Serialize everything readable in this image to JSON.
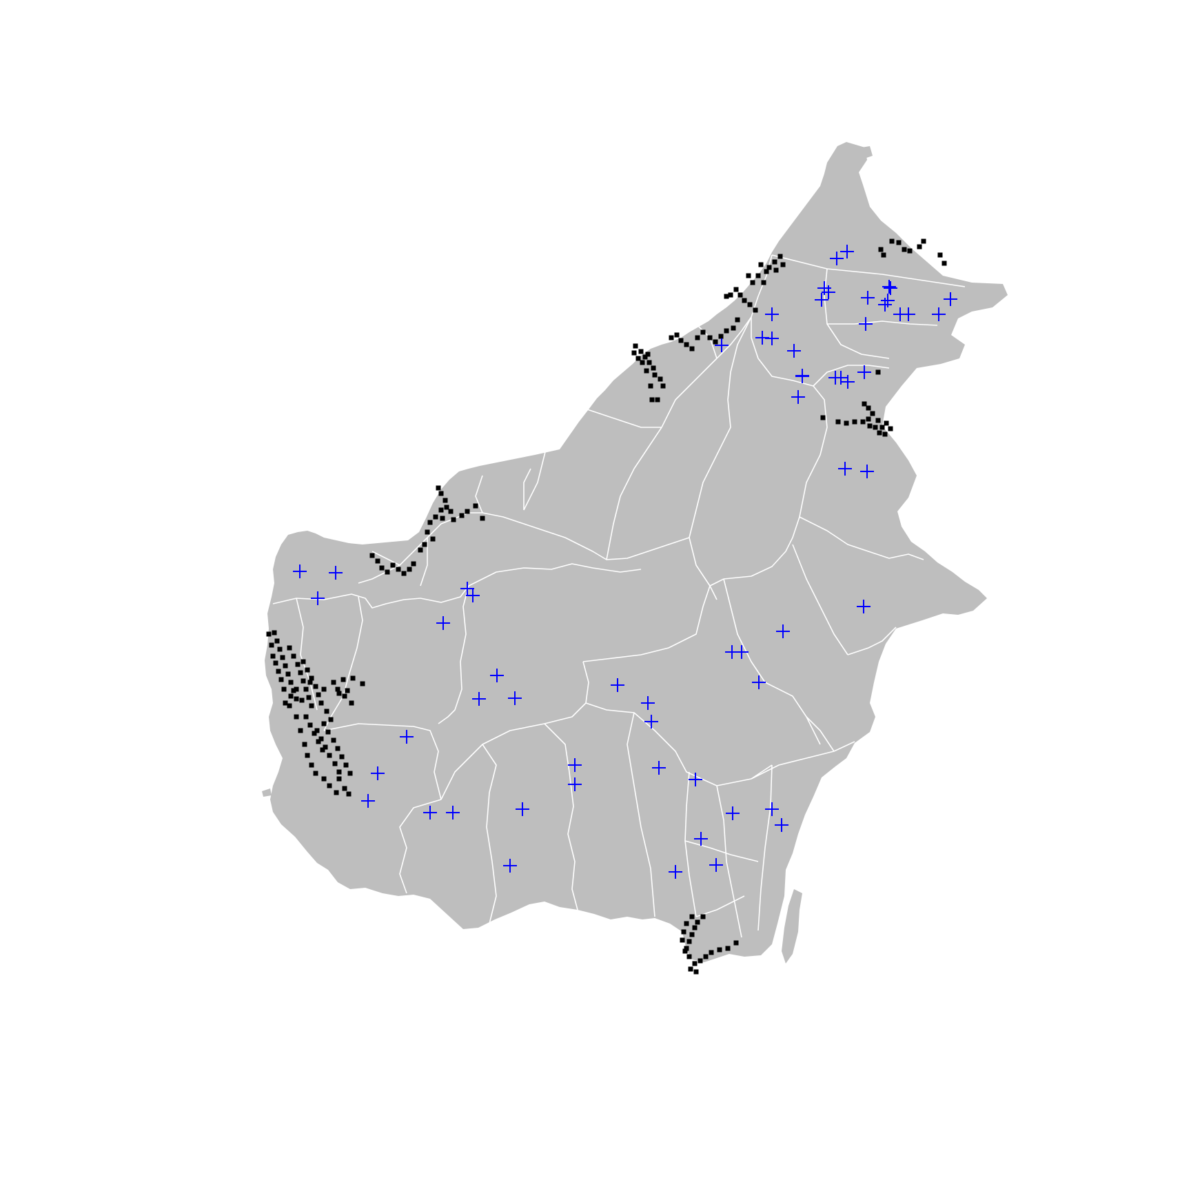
{
  "map": {
    "region_fill": "#bebebe",
    "boundary_color": "#ffffff",
    "background": "#ffffff"
  },
  "layers": [
    {
      "id": "point-markers",
      "symbol": "filled-square",
      "color": "#000000"
    },
    {
      "id": "cross-markers",
      "symbol": "plus",
      "color": "#0000ff"
    }
  ]
}
